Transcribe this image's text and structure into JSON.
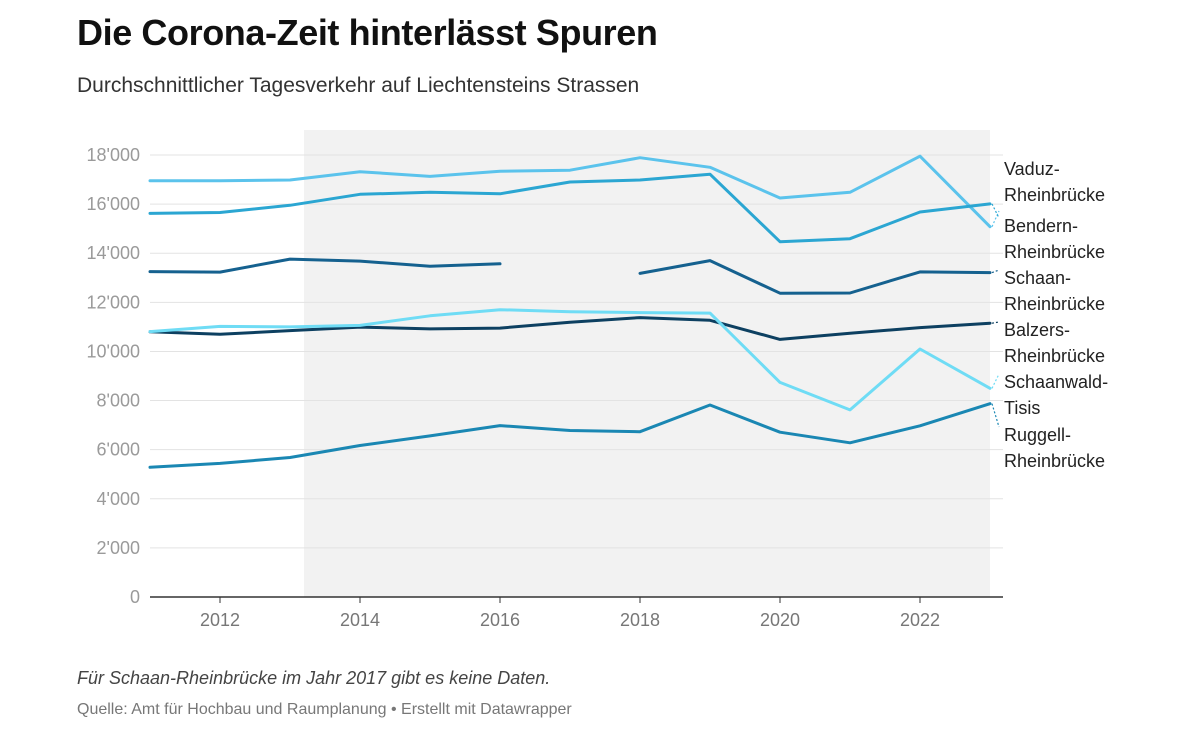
{
  "header": {
    "title": "Die Corona-Zeit hinterlässt Spuren",
    "subtitle": "Durchschnittlicher Tagesverkehr auf Liechtensteins Strassen"
  },
  "footer": {
    "note": "Für Schaan-Rheinbrücke im Jahr 2017 gibt es keine Daten.",
    "source": "Quelle: Amt für Hochbau und Raumplanung • Erstellt mit Datawrapper"
  },
  "chart_data": {
    "type": "line",
    "title": "Die Corona-Zeit hinterlässt Spuren",
    "subtitle": "Durchschnittlicher Tagesverkehr auf Liechtensteins Strassen",
    "xlabel": "",
    "ylabel": "",
    "x": [
      2011,
      2012,
      2013,
      2014,
      2015,
      2016,
      2017,
      2018,
      2019,
      2020,
      2021,
      2022,
      2023
    ],
    "xlim": [
      2011,
      2023
    ],
    "ylim": [
      0,
      18000
    ],
    "x_ticks": [
      2012,
      2014,
      2016,
      2018,
      2020,
      2022
    ],
    "x_tick_labels": [
      "2012",
      "2014",
      "2016",
      "2018",
      "2020",
      "2022"
    ],
    "y_ticks": [
      0,
      2000,
      4000,
      6000,
      8000,
      10000,
      12000,
      14000,
      16000,
      18000
    ],
    "y_tick_labels": [
      "0",
      "2'000",
      "4'000",
      "6'000",
      "8'000",
      "10'000",
      "12'000",
      "14'000",
      "16'000",
      "18'000"
    ],
    "grid": "horizontal",
    "highlight_range": [
      2013.2,
      2023
    ],
    "series": [
      {
        "name": "Vaduz-Rheinbrücke",
        "label_lines": [
          "Vaduz-",
          "Rheinbrücke"
        ],
        "color": "#5bc3ec",
        "values": [
          16950,
          16950,
          16980,
          17320,
          17130,
          17340,
          17380,
          17890,
          17500,
          16250,
          16480,
          17950,
          15080
        ]
      },
      {
        "name": "Bendern-Rheinbrücke",
        "label_lines": [
          "Bendern-",
          "Rheinbrücke"
        ],
        "color": "#2ba6d2",
        "values": [
          15620,
          15660,
          15950,
          16400,
          16480,
          16420,
          16900,
          16980,
          17220,
          14470,
          14590,
          15680,
          16010
        ]
      },
      {
        "name": "Schaan-Rheinbrücke",
        "label_lines": [
          "Schaan-",
          "Rheinbrücke"
        ],
        "color": "#15618f",
        "values": [
          13250,
          13230,
          13760,
          13680,
          13470,
          13570,
          null,
          13180,
          13700,
          12370,
          12380,
          13240,
          13210
        ]
      },
      {
        "name": "Balzers-Rheinbrücke",
        "label_lines": [
          "Balzers-",
          "Rheinbrücke"
        ],
        "color": "#0d4061",
        "values": [
          10800,
          10700,
          10850,
          10990,
          10920,
          10950,
          11190,
          11380,
          11270,
          10490,
          10740,
          10970,
          11150
        ]
      },
      {
        "name": "Schaanwald-Tisis",
        "label_lines": [
          "Schaanwald-",
          "Tisis"
        ],
        "color": "#6fdcf5",
        "values": [
          10810,
          11020,
          11000,
          11060,
          11450,
          11700,
          11620,
          11580,
          11560,
          8740,
          7620,
          10100,
          8500
        ]
      },
      {
        "name": "Ruggell-Rheinbrücke",
        "label_lines": [
          "Ruggell-",
          "Rheinbrücke"
        ],
        "color": "#1a87b3",
        "values": [
          5280,
          5440,
          5680,
          6170,
          6560,
          6980,
          6780,
          6730,
          7820,
          6710,
          6280,
          6970,
          7870
        ]
      }
    ]
  }
}
